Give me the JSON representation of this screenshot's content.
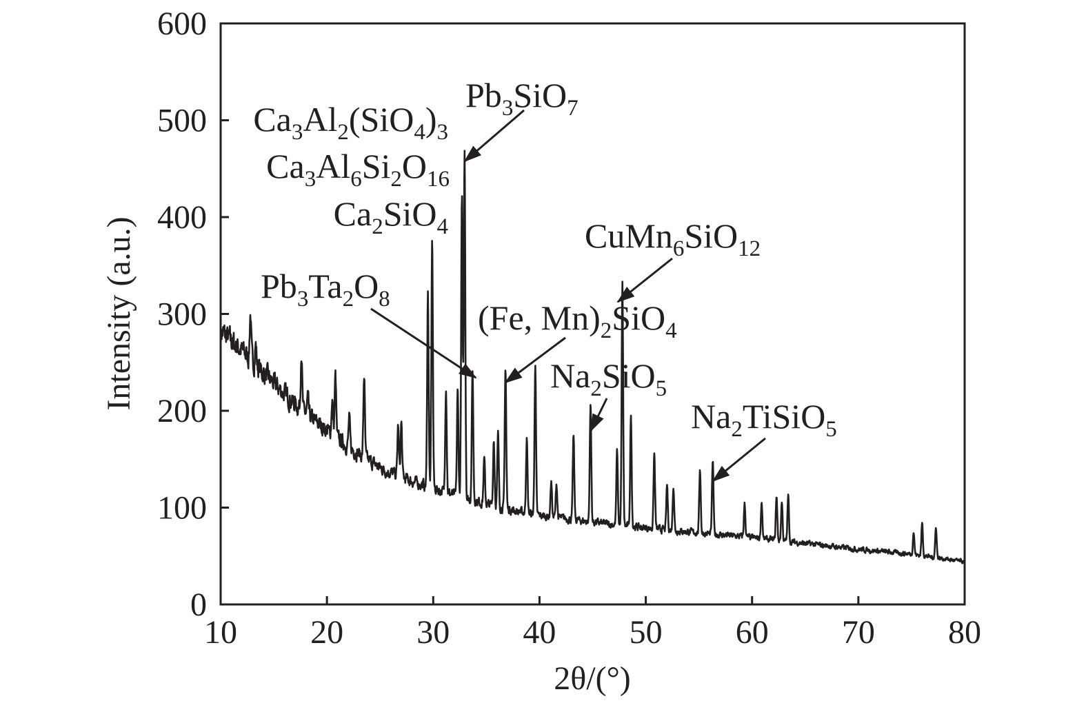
{
  "chart_data": {
    "type": "line",
    "title": "",
    "xlabel": "2θ/(°)",
    "ylabel": "Intensity (a.u.)",
    "xlim": [
      10,
      80
    ],
    "ylim": [
      0,
      600
    ],
    "xticks": [
      10,
      20,
      30,
      40,
      50,
      60,
      70,
      80
    ],
    "yticks": [
      0,
      100,
      200,
      300,
      400,
      500,
      600
    ],
    "grid": false,
    "legend": "none",
    "line_color": "#231f20",
    "series": [
      {
        "background": [
          [
            10,
            282
          ],
          [
            12,
            262
          ],
          [
            15,
            228
          ],
          [
            18,
            197
          ],
          [
            20,
            180
          ],
          [
            22,
            163
          ],
          [
            25,
            141
          ],
          [
            28,
            127
          ],
          [
            30,
            120
          ],
          [
            32,
            113
          ],
          [
            35,
            104
          ],
          [
            38,
            96
          ],
          [
            40,
            92
          ],
          [
            45,
            85
          ],
          [
            50,
            79
          ],
          [
            55,
            74
          ],
          [
            60,
            69
          ],
          [
            65,
            63
          ],
          [
            70,
            57
          ],
          [
            75,
            52
          ],
          [
            80,
            44
          ]
        ],
        "peaks": [
          [
            12.8,
            300
          ],
          [
            13.3,
            268
          ],
          [
            17.6,
            262
          ],
          [
            18.2,
            212
          ],
          [
            20.5,
            213
          ],
          [
            20.8,
            236
          ],
          [
            22.1,
            192
          ],
          [
            23.5,
            237
          ],
          [
            26.7,
            185
          ],
          [
            27.0,
            187
          ],
          [
            29.5,
            322
          ],
          [
            29.9,
            375
          ],
          [
            31.2,
            225
          ],
          [
            32.3,
            220
          ],
          [
            32.7,
            420
          ],
          [
            32.95,
            470
          ],
          [
            33.7,
            242
          ],
          [
            34.8,
            150
          ],
          [
            35.7,
            170
          ],
          [
            36.1,
            175
          ],
          [
            36.8,
            245
          ],
          [
            38.8,
            172
          ],
          [
            39.6,
            247
          ],
          [
            41.1,
            127
          ],
          [
            41.6,
            125
          ],
          [
            43.2,
            174
          ],
          [
            44.8,
            208
          ],
          [
            47.3,
            158
          ],
          [
            47.8,
            330
          ],
          [
            48.6,
            195
          ],
          [
            50.8,
            155
          ],
          [
            52.0,
            123
          ],
          [
            52.6,
            123
          ],
          [
            55.1,
            140
          ],
          [
            56.3,
            148
          ],
          [
            59.3,
            104
          ],
          [
            60.9,
            106
          ],
          [
            62.3,
            112
          ],
          [
            62.8,
            106
          ],
          [
            63.4,
            112
          ],
          [
            75.2,
            75
          ],
          [
            76.0,
            84
          ],
          [
            77.3,
            80
          ]
        ]
      }
    ],
    "annotations": [
      {
        "parts": [
          [
            "Pb",
            ""
          ],
          [
            "3",
            "sub"
          ],
          [
            "SiO",
            ""
          ],
          [
            "7",
            "sub"
          ]
        ],
        "peak_x": 33.0
      },
      {
        "parts": [
          [
            "Ca",
            ""
          ],
          [
            "3",
            "sub"
          ],
          [
            "Al",
            ""
          ],
          [
            "2",
            "sub"
          ],
          [
            "(SiO",
            ""
          ],
          [
            "4",
            "sub"
          ],
          [
            ")",
            ""
          ],
          [
            "3",
            "sub"
          ]
        ]
      },
      {
        "parts": [
          [
            "Ca",
            ""
          ],
          [
            "3",
            "sub"
          ],
          [
            "Al",
            ""
          ],
          [
            "6",
            "sub"
          ],
          [
            "Si",
            ""
          ],
          [
            "2",
            "sub"
          ],
          [
            "O",
            ""
          ],
          [
            "16",
            "sub"
          ]
        ]
      },
      {
        "parts": [
          [
            "Ca",
            ""
          ],
          [
            "2",
            "sub"
          ],
          [
            "SiO",
            ""
          ],
          [
            "4",
            "sub"
          ]
        ]
      },
      {
        "parts": [
          [
            "Pb",
            ""
          ],
          [
            "3",
            "sub"
          ],
          [
            "Ta",
            ""
          ],
          [
            "2",
            "sub"
          ],
          [
            "O",
            ""
          ],
          [
            "8",
            "sub"
          ]
        ],
        "peak_x": 33.7
      },
      {
        "parts": [
          [
            "CuMn",
            ""
          ],
          [
            "6",
            "sub"
          ],
          [
            "SiO",
            ""
          ],
          [
            "12",
            "sub"
          ]
        ],
        "peak_x": 47.8
      },
      {
        "parts": [
          [
            "(Fe, Mn)",
            ""
          ],
          [
            "2",
            "sub"
          ],
          [
            "SiO",
            ""
          ],
          [
            "4",
            "sub"
          ]
        ],
        "peak_x": 36.8
      },
      {
        "parts": [
          [
            "Na",
            ""
          ],
          [
            "2",
            "sub"
          ],
          [
            "SiO",
            ""
          ],
          [
            "5",
            "sub"
          ]
        ],
        "peak_x": 44.8
      },
      {
        "parts": [
          [
            "Na",
            ""
          ],
          [
            "2",
            "sub"
          ],
          [
            "TiSiO",
            ""
          ],
          [
            "5",
            "sub"
          ]
        ],
        "peak_x": 56.3
      }
    ]
  }
}
